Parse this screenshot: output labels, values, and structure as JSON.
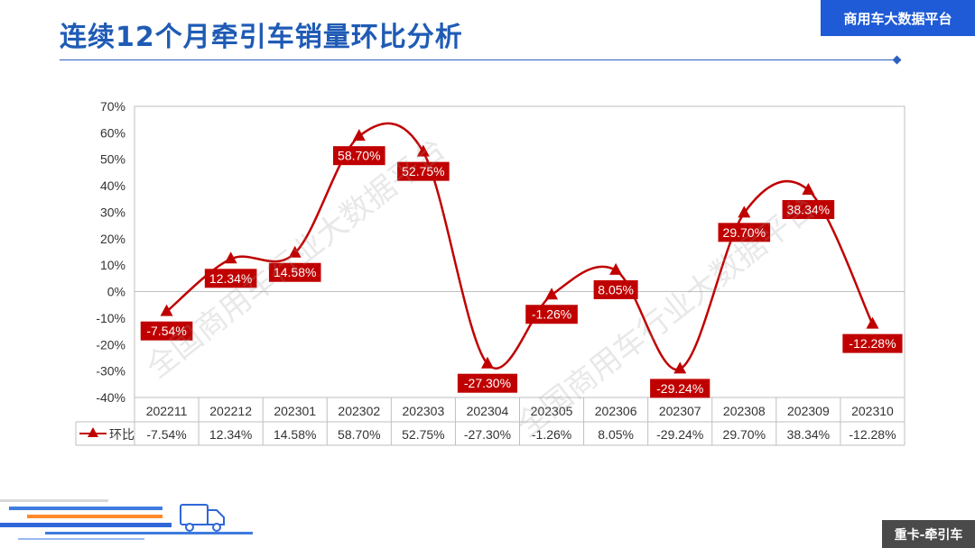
{
  "page": {
    "title": "连续12个月牵引车销量环比分析",
    "brand": "商用车大数据平台",
    "footer_tag": "重卡-牵引车",
    "watermark": "全国商用车行业大数据平台"
  },
  "colors": {
    "series": "#c00000",
    "title": "#1f5bb5",
    "brand_bg": "#1f5bd6",
    "footer_bg": "#4a4a4a"
  },
  "chart_data": {
    "type": "line",
    "categories": [
      "202211",
      "202212",
      "202301",
      "202302",
      "202303",
      "202304",
      "202305",
      "202306",
      "202307",
      "202308",
      "202309",
      "202310"
    ],
    "series": [
      {
        "name": "环比",
        "values": [
          -7.54,
          12.34,
          14.58,
          58.7,
          52.75,
          -27.3,
          -1.26,
          8.05,
          -29.24,
          29.7,
          38.34,
          -12.28
        ],
        "labels": [
          "-7.54%",
          "12.34%",
          "14.58%",
          "58.70%",
          "52.75%",
          "-27.30%",
          "-1.26%",
          "8.05%",
          "-29.24%",
          "29.70%",
          "38.34%",
          "-12.28%"
        ]
      }
    ],
    "ylim": [
      -40,
      70
    ],
    "yticks": [
      "70%",
      "60%",
      "50%",
      "40%",
      "30%",
      "20%",
      "10%",
      "0%",
      "-10%",
      "-20%",
      "-30%",
      "-40%"
    ],
    "smooth": true,
    "marker": "triangle",
    "grid": false,
    "data_table": true
  }
}
